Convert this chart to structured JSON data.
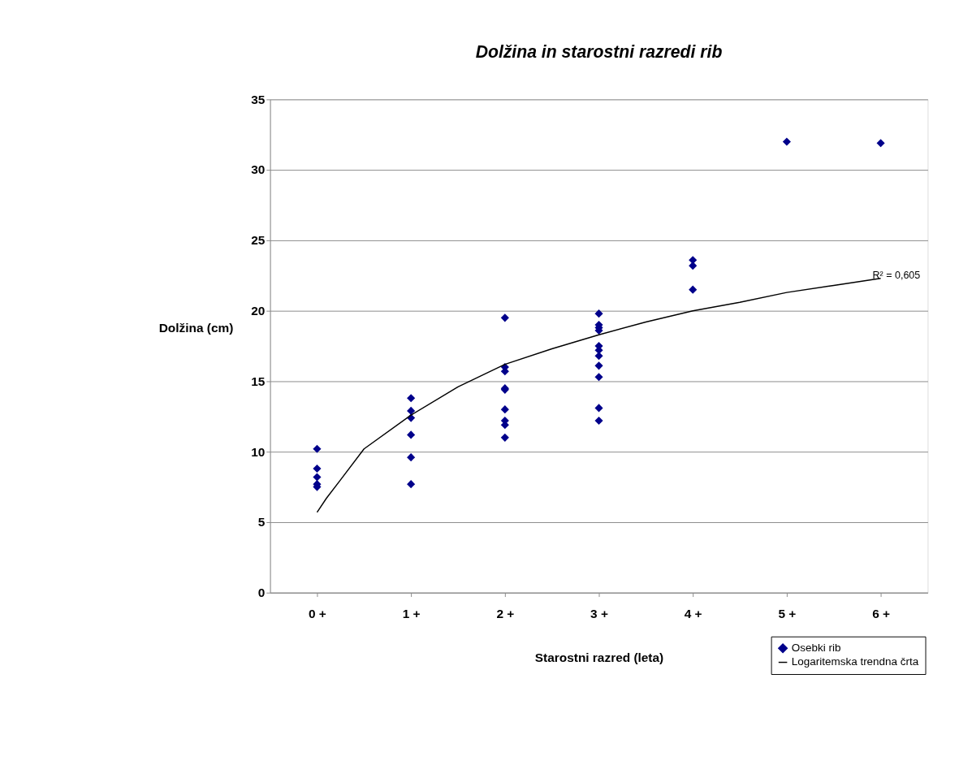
{
  "chart_data": {
    "type": "scatter",
    "title": "Dolžina in starostni razredi rib",
    "xlabel": "Starostni razred (leta)",
    "ylabel": "Dolžina  (cm)",
    "xlim": [
      -0.5,
      6.5
    ],
    "xticks": [
      {
        "value": 0,
        "label": "0 +"
      },
      {
        "value": 1,
        "label": "1 +"
      },
      {
        "value": 2,
        "label": "2 +"
      },
      {
        "value": 3,
        "label": "3 +"
      },
      {
        "value": 4,
        "label": "4 +"
      },
      {
        "value": 5,
        "label": "5 +"
      },
      {
        "value": 6,
        "label": "6 +"
      }
    ],
    "ylim": [
      0,
      35
    ],
    "yticks": [
      0,
      5,
      10,
      15,
      20,
      25,
      30,
      35
    ],
    "grid": "y",
    "legend": "bottom right",
    "series": [
      {
        "name": "Osebki rib",
        "marker": "diamond",
        "color": "#00008b",
        "x": [
          0,
          0,
          0,
          0,
          0,
          1,
          1,
          1,
          1,
          1,
          1,
          2,
          2,
          2,
          2,
          2,
          2,
          2,
          2,
          2,
          3,
          3,
          3,
          3,
          3,
          3,
          3,
          3,
          3,
          3,
          3,
          4,
          4,
          4,
          5,
          6
        ],
        "values": [
          10.2,
          8.8,
          8.2,
          7.7,
          7.5,
          13.8,
          12.9,
          12.4,
          11.2,
          9.6,
          7.7,
          19.5,
          16.0,
          15.7,
          14.5,
          14.4,
          13.0,
          12.2,
          11.9,
          11.0,
          19.8,
          19.0,
          18.8,
          18.6,
          17.5,
          17.2,
          16.8,
          16.1,
          15.3,
          13.1,
          12.2,
          23.6,
          23.2,
          21.5,
          32.0,
          31.9
        ]
      },
      {
        "name": "Logaritemska trendna črta",
        "type": "line",
        "marker": "none",
        "line_style": "solid",
        "color": "#000000",
        "x": [
          0,
          0.1,
          0.25,
          0.5,
          1,
          1.5,
          2,
          2.5,
          3,
          3.5,
          4,
          4.5,
          5,
          5.5,
          6
        ],
        "values": [
          5.7,
          6.7,
          8.0,
          10.2,
          12.6,
          14.6,
          16.2,
          17.3,
          18.3,
          19.2,
          20.0,
          20.6,
          21.3,
          21.8,
          22.3
        ]
      }
    ],
    "annotations": [
      "R² = 0,605"
    ]
  }
}
